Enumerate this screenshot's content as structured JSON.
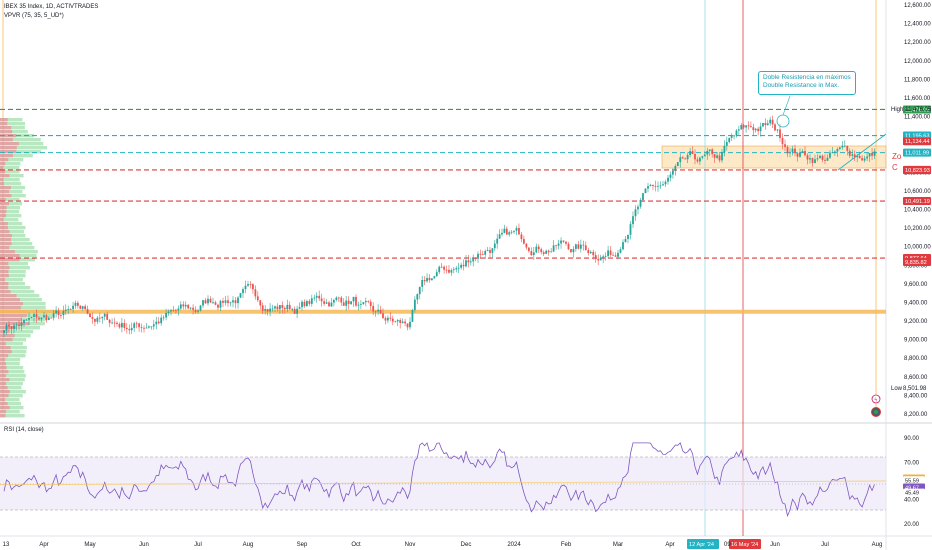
{
  "header": {
    "symbol_line": "IBEX 35 Index, 1D, ACTIVTRADES",
    "indicator_line": "VPVR (75, 35, 5_UD*)",
    "rsi_label": "RSI (14, close)"
  },
  "annotation": {
    "line1": "Doble Resistencia en máximos",
    "line2": "Double Resistance in Max."
  },
  "zone_label": {
    "line1": "Zo",
    "line2": "C"
  },
  "price_axis": {
    "ticks": [
      "12,600.00",
      "12,400.00",
      "12,200.00",
      "12,000.00",
      "11,800.00",
      "11,600.00",
      "11,400.00",
      "11,200.00",
      "11,000.00",
      "10,800.00",
      "10,600.00",
      "10,400.00",
      "10,200.00",
      "10,000.00",
      "9,800.00",
      "9,600.00",
      "9,400.00",
      "9,200.00",
      "9,000.00",
      "8,800.00",
      "8,600.00",
      "8,400.00",
      "8,200.00"
    ],
    "high_label": "High",
    "high_value": "11,476.05",
    "low_label": "Low",
    "low_value": "8,501.98",
    "tags": [
      {
        "text": "11,476.05",
        "color": "#2e9e4e"
      },
      {
        "text": "11,195.63",
        "color": "#22b3c4"
      },
      {
        "text": "11,134.44",
        "color": "#e03a3e"
      },
      {
        "text": "11,011.99",
        "color": "#22b3c4"
      },
      {
        "text": "10,825.94",
        "color": "#e03a3e"
      },
      {
        "text": "10,823.93",
        "color": "#e03a3e"
      },
      {
        "text": "10,491.19",
        "color": "#e03a3e"
      },
      {
        "text": "9,877.64",
        "color": "#e03a3e"
      },
      {
        "text": "9,835.82",
        "color": "#e03a3e"
      }
    ]
  },
  "rsi_axis": {
    "ticks": [
      "90.00",
      "70.00",
      "40.00",
      "20.00"
    ],
    "tags": [
      {
        "text": "57.07",
        "color": "#f2b13a"
      },
      {
        "text": "55.59",
        "color": "#ffffff"
      },
      {
        "text": "49.67",
        "color": "#7e57c2"
      },
      {
        "text": "45.49",
        "color": "#ffffff"
      }
    ]
  },
  "time_axis": {
    "labels": [
      "13",
      "Apr",
      "May",
      "Jun",
      "Jul",
      "Aug",
      "Sep",
      "Oct",
      "Nov",
      "Dec",
      "2024",
      "Feb",
      "Mar",
      "Apr",
      "Jun",
      "Jul",
      "Aug"
    ],
    "highlight_labels": [
      {
        "text": "12 Apr '24",
        "color": "#22b3c4"
      },
      {
        "text": "16 May '24",
        "color": "#e03a3e"
      }
    ],
    "hidden_fragment": "09"
  },
  "chart_data": {
    "type": "candlestick",
    "title": "IBEX 35 Index, 1D, ACTIVTRADES",
    "y_range": [
      8150,
      12700
    ],
    "monthly_closes": {
      "x": [
        "Mar 2023",
        "Apr",
        "May",
        "Jun",
        "Jul",
        "Aug",
        "Sep",
        "Oct",
        "Nov",
        "Dec",
        "Jan 2024",
        "Feb",
        "Mar",
        "Apr",
        "May",
        "Jun",
        "Jul"
      ],
      "close": [
        9200,
        9250,
        9150,
        9300,
        9500,
        9350,
        9450,
        9100,
        9800,
        10100,
        10050,
        9950,
        10700,
        10900,
        11300,
        10950,
        11000
      ]
    },
    "levels": [
      {
        "value": 11476.05,
        "color": "#2e9e4e",
        "style": "dashed"
      },
      {
        "value": 11195.63,
        "color": "#22b3c4",
        "style": "dashed"
      },
      {
        "value": 11011.99,
        "color": "#22b3c4",
        "style": "dashed"
      },
      {
        "value": 10825.94,
        "color": "#e03a3e",
        "style": "dashed"
      },
      {
        "value": 10491.19,
        "color": "#e03a3e",
        "style": "dashed"
      },
      {
        "value": 9877.64,
        "color": "#e03a3e",
        "style": "dashed"
      },
      {
        "value": 9300,
        "color": "#f7b955",
        "style": "solid"
      }
    ],
    "zone": {
      "from": 11011.99,
      "to": 11195.63,
      "color": "#fbd9a4"
    },
    "rsi": {
      "overbought": 70,
      "oversold": 30,
      "range": [
        20,
        90
      ],
      "last": 49.67
    }
  }
}
